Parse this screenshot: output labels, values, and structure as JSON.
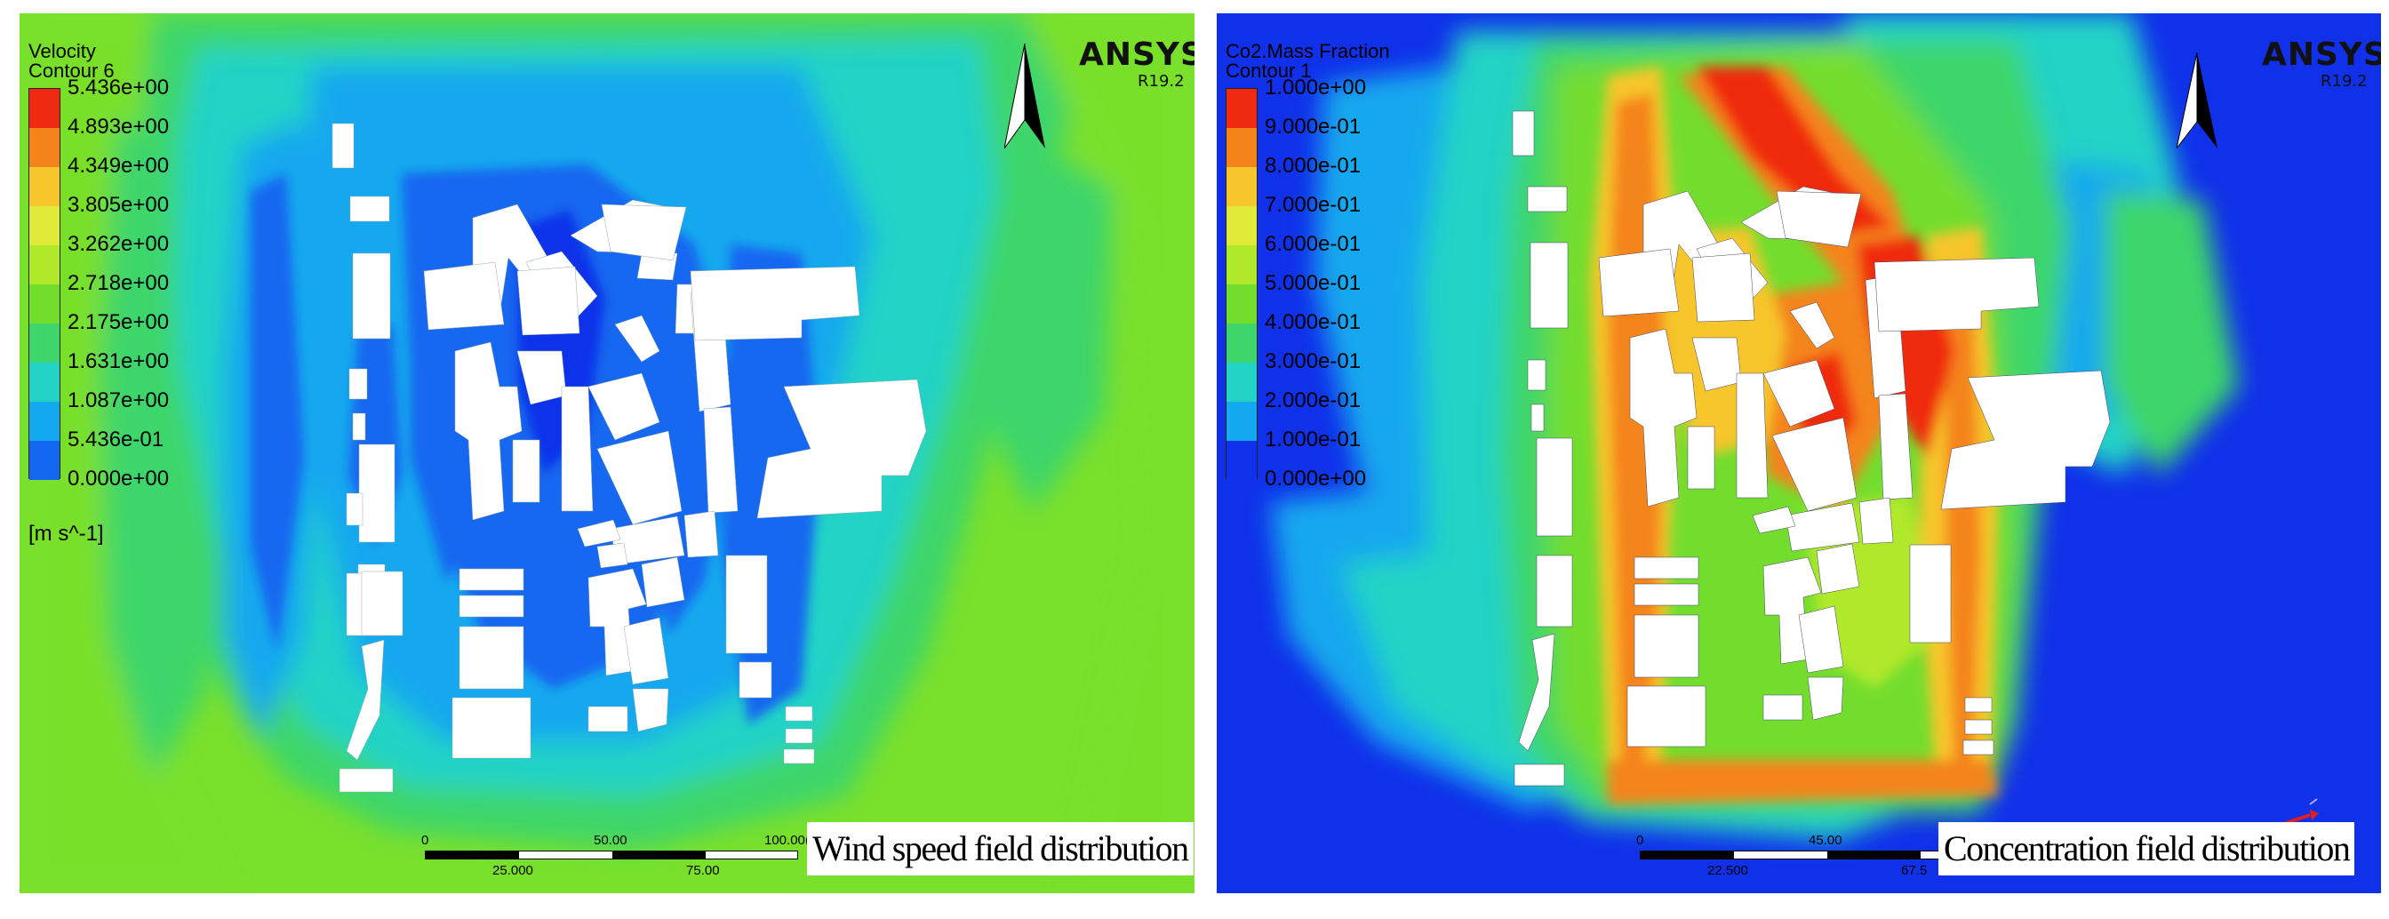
{
  "left_panel": {
    "legend": {
      "title_line1": "Velocity",
      "title_line2": "Contour 6",
      "values": [
        "5.436e+00",
        "4.893e+00",
        "4.349e+00",
        "3.805e+00",
        "3.262e+00",
        "2.718e+00",
        "2.175e+00",
        "1.631e+00",
        "1.087e+00",
        "5.436e-01",
        "0.000e+00"
      ],
      "unit": "[m s^-1]",
      "colors": [
        "#f02a10",
        "#f4841a",
        "#f6c62c",
        "#e0ea38",
        "#b0e82a",
        "#73dd2e",
        "#3ed66a",
        "#22d3c6",
        "#14a8ee",
        "#1468f0"
      ]
    },
    "brand": "ANSYS",
    "version": "R19.2",
    "scale_bar": {
      "top_labels": [
        "0",
        "50.00",
        "100.00"
      ],
      "unit_fragment": "(m",
      "bottom_labels": [
        "25.000",
        "75.00"
      ]
    },
    "caption": "Wind speed field distribution"
  },
  "right_panel": {
    "legend": {
      "title_line1": "Co2.Mass Fraction",
      "title_line2": "Contour 1",
      "values": [
        "1.000e+00",
        "9.000e-01",
        "8.000e-01",
        "7.000e-01",
        "6.000e-01",
        "5.000e-01",
        "4.000e-01",
        "3.000e-01",
        "2.000e-01",
        "1.000e-01",
        "0.000e+00"
      ],
      "colors": [
        "#f02a10",
        "#f4841a",
        "#f6c62c",
        "#e0ea38",
        "#b0e82a",
        "#73dd2e",
        "#3ed66a",
        "#22d3c6",
        "#14a8ee",
        "#1030ea"
      ]
    },
    "brand": "ANSYS",
    "version": "R19.2",
    "scale_bar": {
      "top_labels": [
        "0",
        "45.00"
      ],
      "bottom_labels": [
        "22.500",
        "67.5"
      ]
    },
    "caption": "Concentration field distribution"
  },
  "icons": {
    "north_arrow": "north-arrow-icon",
    "axis_triad": "axis-triad-icon"
  }
}
